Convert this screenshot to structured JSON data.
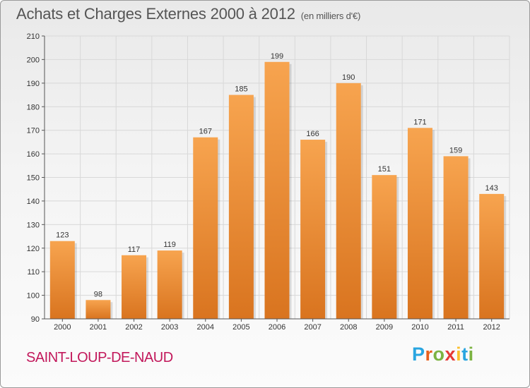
{
  "title": "Achats et Charges Externes 2000 à 2012",
  "subtitle": "(en milliers d'€)",
  "city": "SAINT-LOUP-DE-NAUD",
  "logo": {
    "letters": [
      "P",
      "r",
      "o",
      "x",
      "i",
      "t",
      "i"
    ],
    "colors": [
      "#29a5e0",
      "#e8601c",
      "#7cb342",
      "#e53935",
      "#fbc02d",
      "#29a5e0",
      "#7cb342"
    ]
  },
  "colors": {
    "bar_top": "#f7a44f",
    "bar_bottom": "#d9741f",
    "grid": "#d8d8d8",
    "city": "#c2185b"
  },
  "chart_data": {
    "type": "bar",
    "categories": [
      "2000",
      "2001",
      "2002",
      "2003",
      "2004",
      "2005",
      "2006",
      "2007",
      "2008",
      "2009",
      "2010",
      "2011",
      "2012"
    ],
    "values": [
      123,
      98,
      117,
      119,
      167,
      185,
      199,
      166,
      190,
      151,
      171,
      159,
      143
    ],
    "ylim": [
      90,
      210
    ],
    "yticks": [
      90,
      100,
      110,
      120,
      130,
      140,
      150,
      160,
      170,
      180,
      190,
      200,
      210
    ],
    "grid": true
  }
}
